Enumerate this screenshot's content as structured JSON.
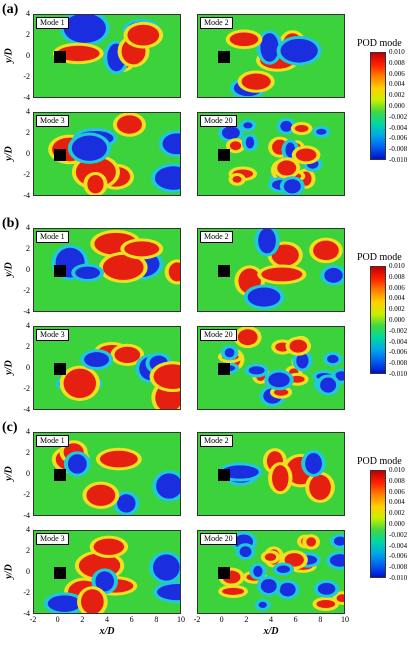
{
  "panel_letters": [
    "(a)",
    "(b)",
    "(c)"
  ],
  "mode_labels": [
    "Mode 1",
    "Mode 2",
    "Mode 3",
    "Mode 20"
  ],
  "axis": {
    "ylabel": "y/D",
    "xlabel": "x/D",
    "yticks": [
      "4",
      "2",
      "0",
      "-2",
      "-4"
    ],
    "xticks": [
      "-2",
      "0",
      "2",
      "4",
      "6",
      "8",
      "10"
    ]
  },
  "colorbar": {
    "title": "POD mode",
    "ticks": [
      "0.010",
      "0.008",
      "0.006",
      "0.004",
      "0.002",
      "0.000",
      "-0.002",
      "-0.004",
      "-0.006",
      "-0.008",
      "-0.010"
    ],
    "colors": [
      "#c00000",
      "#ff2000",
      "#ff8000",
      "#ffd000",
      "#c8f000",
      "#40d840",
      "#00d8a0",
      "#00a8e8",
      "#0060f0",
      "#0010d0"
    ]
  },
  "field_colors": {
    "positive": "#e62010",
    "negative": "#1a2ee0",
    "background": "#3cd23c",
    "warm": "#f0e020",
    "cool": "#20c8d8"
  }
}
